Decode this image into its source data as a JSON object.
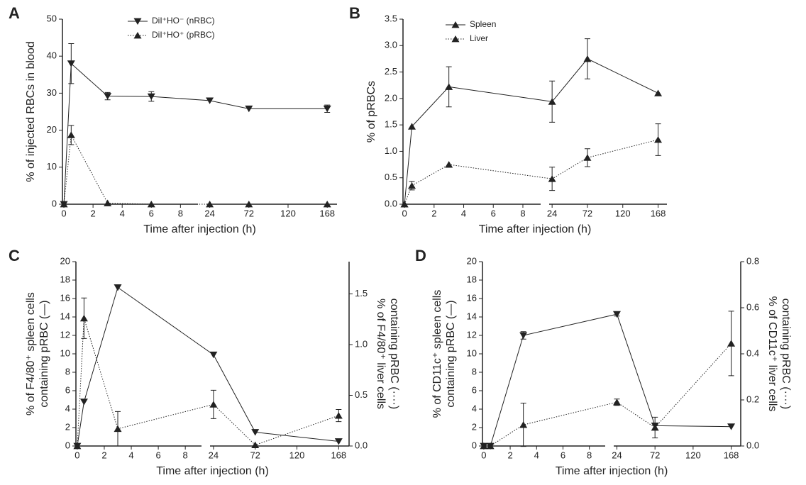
{
  "chart_data": [
    {
      "type": "line",
      "panel": "A",
      "ylabel": [
        "% of injected RBCs in blood"
      ],
      "xlabel": "Time after injection (h)",
      "x": [
        0,
        0.5,
        3,
        6,
        24,
        72,
        168
      ],
      "x_segments": [
        {
          "xlim": [
            -0.1,
            9.2
          ],
          "xticks": [
            0,
            2,
            4,
            6,
            8
          ]
        },
        {
          "xlim": [
            20,
            180
          ],
          "xticks": [
            24,
            72,
            120,
            168
          ]
        }
      ],
      "ylim": [
        0,
        50
      ],
      "yticks": [
        0,
        10,
        20,
        30,
        40,
        50
      ],
      "series": [
        {
          "name": "DiI⁺HO⁻ (nRBC)",
          "color": "#222222",
          "marker": "triangle-down",
          "dash": "solid",
          "values": [
            0,
            38,
            29.2,
            29.1,
            28,
            25.8,
            25.8
          ],
          "errors": [
            null,
            5.4,
            1,
            1.3,
            null,
            null,
            1
          ]
        },
        {
          "name": "DiI⁺HO⁺ (pRBC)",
          "color": "#222222",
          "marker": "triangle-up",
          "dash": "dotted",
          "values": [
            0,
            18.7,
            0.3,
            0,
            0,
            0,
            0
          ],
          "errors": [
            null,
            2.6,
            null,
            null,
            null,
            null,
            null
          ]
        }
      ]
    },
    {
      "type": "line",
      "panel": "B",
      "ylabel": [
        "% of pRBCs"
      ],
      "xlabel": "Time after injection (h)",
      "x": [
        0,
        0.5,
        3,
        24,
        72,
        168
      ],
      "x_segments": [
        {
          "xlim": [
            -0.1,
            9.2
          ],
          "xticks": [
            0,
            2,
            4,
            6,
            8
          ]
        },
        {
          "xlim": [
            20,
            180
          ],
          "xticks": [
            24,
            72,
            120,
            168
          ]
        }
      ],
      "ylim": [
        0,
        3.5
      ],
      "yticks": [
        {
          "value": 0,
          "label": "0.0"
        },
        0.5,
        {
          "value": 1,
          "label": "1.0"
        },
        1.5,
        {
          "value": 2,
          "label": "2.0"
        },
        2.5,
        {
          "value": 3,
          "label": "3.0"
        },
        3.5
      ],
      "series": [
        {
          "name": "Spleen",
          "color": "#222222",
          "marker": "triangle-up",
          "dash": "solid",
          "values": [
            0,
            1.47,
            2.22,
            1.94,
            2.75,
            2.1
          ],
          "errors": [
            null,
            null,
            0.38,
            0.39,
            0.38,
            null
          ]
        },
        {
          "name": "Liver",
          "color": "#222222",
          "marker": "triangle-up",
          "dash": "dotted",
          "values": [
            0,
            0.35,
            0.75,
            0.48,
            0.88,
            1.22
          ],
          "errors": [
            null,
            0.08,
            null,
            0.22,
            0.17,
            0.3
          ]
        }
      ]
    },
    {
      "type": "line",
      "panel": "C",
      "ylabel": [
        "% of F4/80⁺ spleen cells",
        "containing pRBC (—)"
      ],
      "y2label": [
        "% of F4/80⁺ liver cells",
        "containing pRBC (····)"
      ],
      "xlabel": "Time after injection (h)",
      "x": [
        0,
        0.5,
        3,
        24,
        72,
        168
      ],
      "x_segments": [
        {
          "xlim": [
            -0.1,
            9.2
          ],
          "xticks": [
            0,
            2,
            4,
            6,
            8
          ]
        },
        {
          "xlim": [
            20,
            180
          ],
          "xticks": [
            24,
            72,
            120,
            168
          ]
        }
      ],
      "ylim": [
        0,
        20
      ],
      "yticks": [
        0,
        2,
        4,
        6,
        8,
        10,
        12,
        14,
        16,
        18,
        20
      ],
      "y2lim": [
        0,
        1.818
      ],
      "y2ticks": [
        {
          "value": 0,
          "label": "0.0"
        },
        0.5,
        {
          "value": 1,
          "label": "1.0"
        },
        1.5
      ],
      "series": [
        {
          "color": "#222222",
          "marker": "triangle-down",
          "dash": "solid",
          "values": [
            0,
            4.8,
            17.2,
            9.9,
            1.5,
            0.5
          ],
          "errors": [
            null,
            null,
            null,
            null,
            null,
            null
          ]
        },
        {
          "color": "#222222",
          "marker": "triangle-up",
          "dash": "dotted",
          "axis": "y2",
          "values": [
            0,
            1.26,
            0.17,
            0.41,
            0.01,
            0.3
          ],
          "errors": [
            null,
            0.2,
            0.17,
            0.14,
            null,
            0.06
          ]
        }
      ]
    },
    {
      "type": "line",
      "panel": "D",
      "ylabel": [
        "% of CD11c⁺ spleen cells",
        "containing pRBC (—)"
      ],
      "y2label": [
        "% of CD11c⁺ liver cells",
        "containing pRBC (····)"
      ],
      "xlabel": "Time after injection (h)",
      "x": [
        0,
        0.5,
        3,
        24,
        72,
        168
      ],
      "x_segments": [
        {
          "xlim": [
            -0.1,
            9.2
          ],
          "xticks": [
            0,
            2,
            4,
            6,
            8
          ]
        },
        {
          "xlim": [
            20,
            180
          ],
          "xticks": [
            24,
            72,
            120,
            168
          ]
        }
      ],
      "ylim": [
        0,
        20
      ],
      "yticks": [
        0,
        2,
        4,
        6,
        8,
        10,
        12,
        14,
        16,
        18,
        20
      ],
      "y2lim": [
        0,
        0.8
      ],
      "y2ticks": [
        {
          "value": 0,
          "label": "0.0"
        },
        0.2,
        0.4,
        0.6,
        0.8
      ],
      "series": [
        {
          "color": "#222222",
          "marker": "triangle-down",
          "dash": "solid",
          "values": [
            0,
            0,
            12,
            14.3,
            2.2,
            2.1
          ],
          "errors": [
            null,
            null,
            0.4,
            0.2,
            null,
            null
          ]
        },
        {
          "color": "#222222",
          "marker": "triangle-up",
          "dash": "dotted",
          "axis": "y2",
          "values": [
            0,
            0,
            0.092,
            0.19,
            0.08,
            0.445
          ],
          "errors": [
            null,
            null,
            0.094,
            0.014,
            0.045,
            0.14
          ]
        }
      ]
    }
  ]
}
